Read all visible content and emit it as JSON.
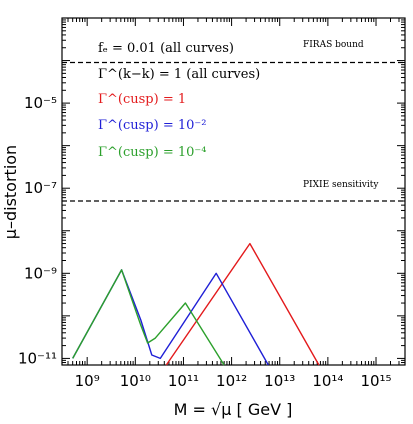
{
  "chart_data": {
    "type": "line",
    "title": "",
    "xlabel": "M = √μ  [ GeV ]",
    "ylabel": "μ–distortion",
    "x_scale": "log",
    "y_scale": "log",
    "xlim": [
      300000000.0,
      4000000000000000.0
    ],
    "ylim": [
      7e-12,
      0.001
    ],
    "x_ticks": [
      1000000000.0,
      10000000000.0,
      100000000000.0,
      1000000000000.0,
      10000000000000.0,
      100000000000000.0,
      1000000000000000.0
    ],
    "x_tick_labels": [
      "10⁹",
      "10¹⁰",
      "10¹¹",
      "10¹²",
      "10¹³",
      "10¹⁴",
      "10¹⁵"
    ],
    "y_ticks": [
      1e-11,
      1e-09,
      1e-07,
      1e-05
    ],
    "y_tick_labels": [
      "10⁻¹¹",
      "10⁻⁹",
      "10⁻⁷",
      "10⁻⁵"
    ],
    "grid": false,
    "reference_lines": [
      {
        "label": "FIRAS bound",
        "y": 9e-05,
        "style": "dashed",
        "color": "#000000"
      },
      {
        "label": "PIXIE sensitivity",
        "y": 5e-08,
        "style": "dashed",
        "color": "#000000"
      }
    ],
    "legend_text": [
      {
        "text": "fₑ = 0.01 (all curves)",
        "color": "#000000"
      },
      {
        "text": "Γ^(k−k) = 1 (all curves)",
        "color": "#000000"
      },
      {
        "text": "Γ^(cusp) = 1",
        "color": "#e31a1c"
      },
      {
        "text": "Γ^(cusp) = 10⁻²",
        "color": "#1f1fd6"
      },
      {
        "text": "Γ^(cusp) = 10⁻⁴",
        "color": "#2ca02c"
      }
    ],
    "series": [
      {
        "color": "#e31a1c",
        "x": [
          44000000000.0,
          2400000000000.0,
          65000000000000.0
        ],
        "y": [
          7e-12,
          5e-09,
          7e-12
        ]
      },
      {
        "color": "#1f1fd6",
        "x": [
          500000000.0,
          5200000000.0,
          13000000000.0,
          22000000000.0,
          33000000000.0,
          480000000000.0,
          5800000000000.0
        ],
        "y": [
          1e-11,
          1.2e-09,
          8e-11,
          1.2e-11,
          1e-11,
          1e-09,
          7e-12
        ]
      },
      {
        "color": "#2ca02c",
        "x": [
          500000000.0,
          5200000000.0,
          13000000000.0,
          18000000000.0,
          26000000000.0,
          110000000000.0,
          700000000000.0
        ],
        "y": [
          1e-11,
          1.2e-09,
          6e-11,
          2.3e-11,
          3e-11,
          2e-10,
          7e-12
        ]
      }
    ]
  }
}
